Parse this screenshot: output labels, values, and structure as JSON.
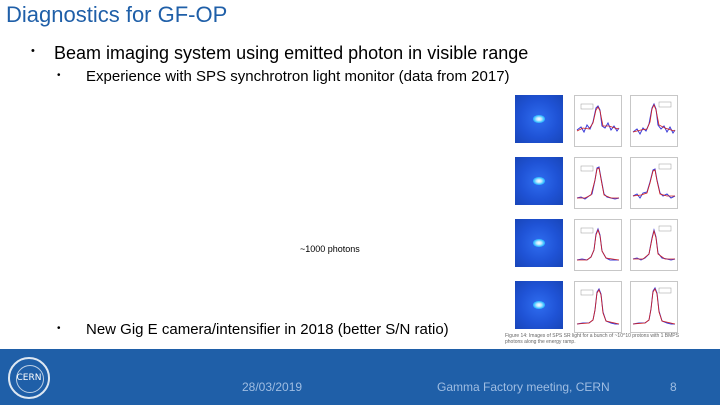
{
  "slide": {
    "title": "Diagnostics for GF-OP",
    "bullet_symbol": "•",
    "bullet1": "Beam imaging system using emitted photon in visible range",
    "sub1": "Experience with SPS synchrotron light monitor (data from 2017)",
    "photons_label": "~1000 photons",
    "sub2": "New Gig E camera/intensifier in 2018 (better S/N ratio)",
    "figure_caption": "Figure 14: Images of SPS SR light for a bunch of ~10^10 protons with 1 BMPS photons along the energy ramp."
  },
  "footer": {
    "logo_text": "CERN",
    "date": "28/03/2019",
    "meeting": "Gamma Factory meeting, CERN",
    "page": "8"
  },
  "colors": {
    "title": "#1f5fa8",
    "footer_bg": "#1f5fa8",
    "footer_text": "#9fbde2",
    "camera_blue": "#1f53d6",
    "profile_blue": "#3a3ad8",
    "profile_red": "#d02020"
  }
}
